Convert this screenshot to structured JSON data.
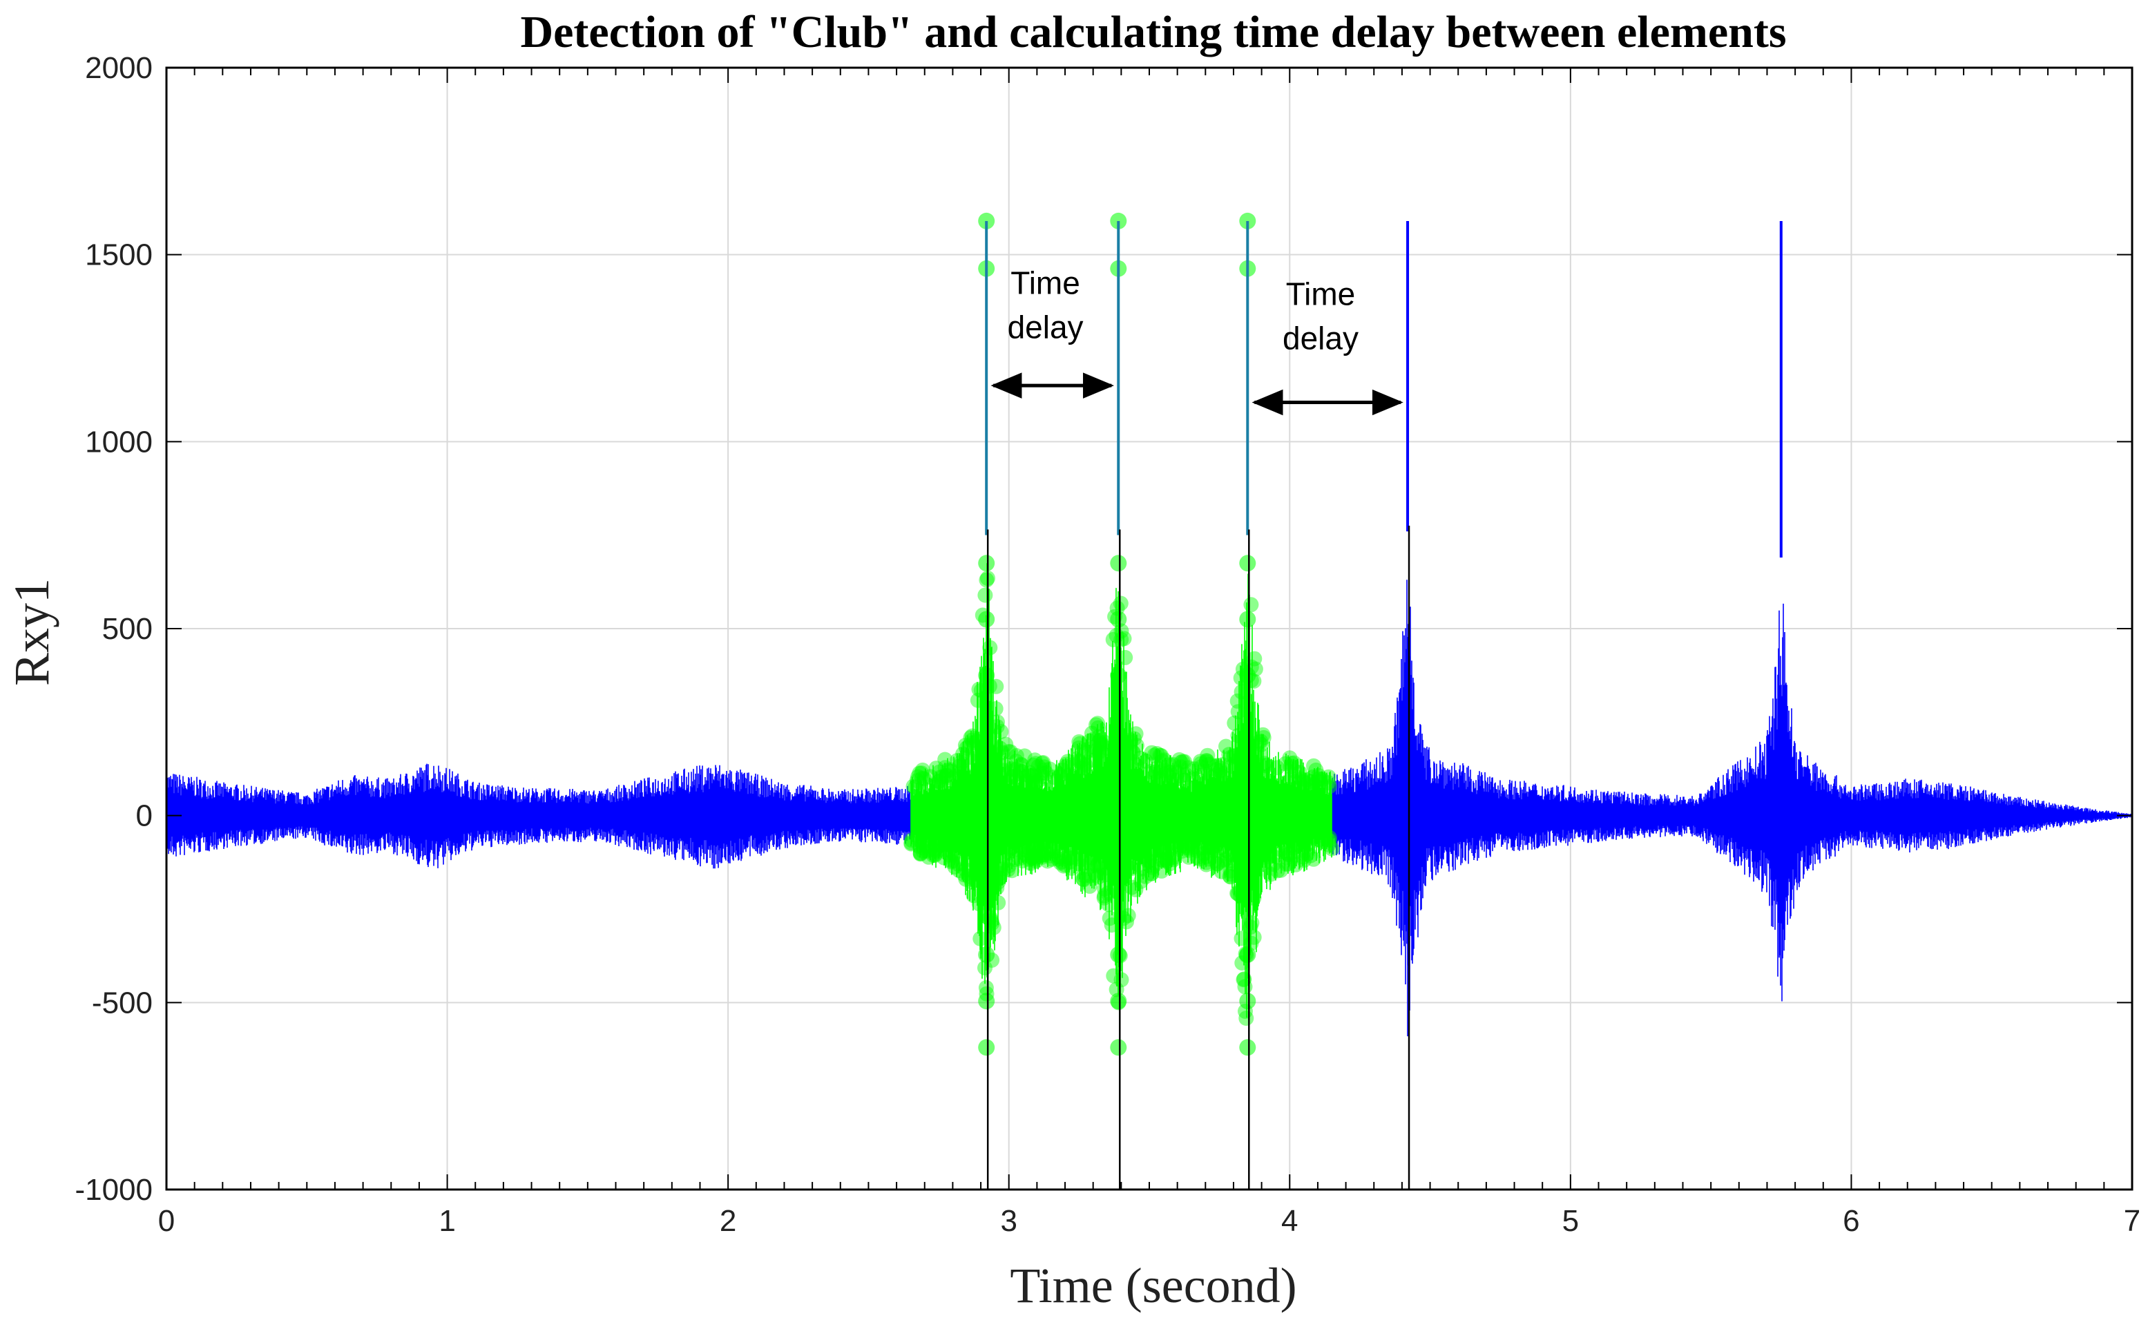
{
  "chart_data": {
    "type": "line",
    "title": "Detection of \"Club\" and calculating time delay between elements",
    "xlabel": "Time (second)",
    "ylabel": "Rxy1",
    "xlim": [
      0,
      7
    ],
    "ylim": [
      -1000,
      2000
    ],
    "x_ticks": [
      0,
      1,
      2,
      3,
      4,
      5,
      6,
      7
    ],
    "y_ticks": [
      -1000,
      -500,
      0,
      500,
      1000,
      1500,
      2000
    ],
    "grid": true,
    "colors": {
      "signal": "#0000ff",
      "detected": "#00ff00",
      "detected_line": "#1a7fa6",
      "trace": "#000000",
      "grid": "#d9d9d9",
      "axes": "#000000",
      "arrow": "#000000"
    },
    "detected_window": [
      2.65,
      4.15
    ],
    "series": [
      {
        "kind": "envelope",
        "segments": [
          {
            "x": [
              0.0,
              0.2,
              0.5,
              0.65,
              0.8,
              0.95,
              1.1,
              1.3,
              1.55,
              1.75,
              1.95,
              2.2,
              2.4,
              2.65
            ],
            "amp": [
              120,
              90,
              60,
              110,
              100,
              150,
              90,
              75,
              70,
              110,
              145,
              90,
              70,
              80
            ]
          },
          {
            "x": [
              2.65,
              2.8,
              2.9,
              3.0,
              3.15,
              3.3,
              3.4,
              3.5,
              3.65,
              3.8,
              3.85,
              3.95,
              4.15
            ],
            "amp": [
              110,
              160,
              280,
              180,
              140,
              240,
              300,
              190,
              140,
              200,
              290,
              180,
              120
            ]
          },
          {
            "x": [
              4.15,
              4.3,
              4.42,
              4.55,
              4.75,
              5.0,
              5.25,
              5.45,
              5.65,
              5.75,
              5.85,
              6.0,
              6.2,
              6.35,
              6.6,
              6.85,
              7.0
            ],
            "amp": [
              110,
              160,
              220,
              160,
              100,
              80,
              60,
              55,
              180,
              260,
              160,
              80,
              100,
              90,
              50,
              20,
              5
            ]
          }
        ]
      },
      {
        "kind": "peaks",
        "items": [
          {
            "x": 2.92,
            "pos": 750,
            "neg": -620,
            "spike": 1590,
            "trough": -1000,
            "detected": true
          },
          {
            "x": 3.39,
            "pos": 750,
            "neg": -620,
            "spike": 1590,
            "trough": -1000,
            "detected": true
          },
          {
            "x": 3.85,
            "pos": 750,
            "neg": -620,
            "spike": 1590,
            "trough": -1000,
            "detected": true
          },
          {
            "x": 4.42,
            "pos": 760,
            "neg": -620,
            "spike": 1590,
            "trough": -1000,
            "detected": false
          },
          {
            "x": 5.75,
            "pos": 690,
            "neg": -620,
            "spike": 1590,
            "trough": null,
            "detected": false
          }
        ]
      }
    ],
    "annotations": [
      {
        "text_lines": [
          "Time",
          "delay"
        ],
        "x": 3.13,
        "y": 1395,
        "arrow_from": 2.92,
        "arrow_to": 3.39,
        "arrow_y": 1150
      },
      {
        "text_lines": [
          "Time",
          "delay"
        ],
        "x": 4.11,
        "y": 1365,
        "arrow_from": 3.85,
        "arrow_to": 4.42,
        "arrow_y": 1105
      }
    ]
  }
}
